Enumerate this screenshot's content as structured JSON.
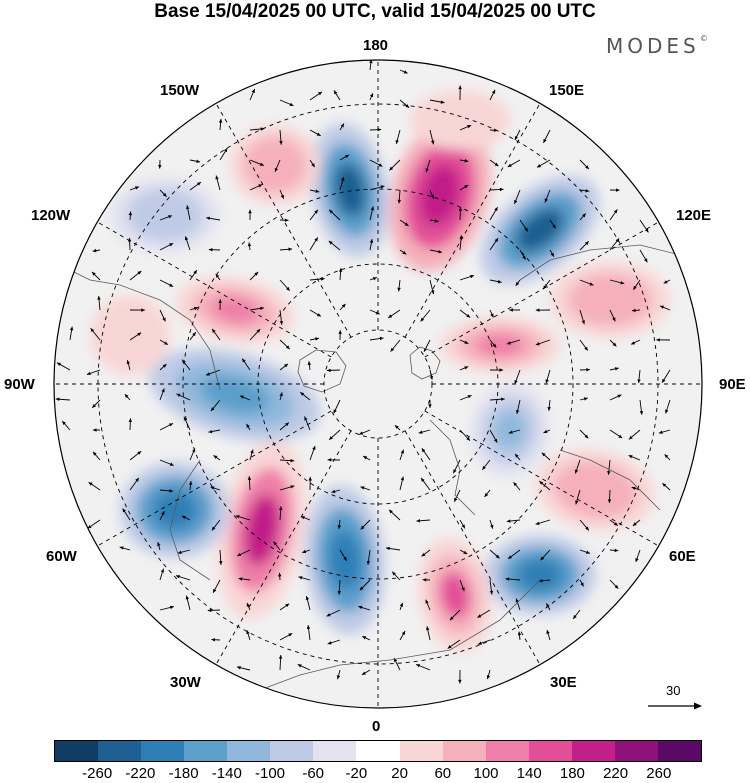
{
  "title": "Base 15/04/2025 00 UTC, valid 15/04/2025 00 UTC",
  "brand": "MODES",
  "brand_mark": "©",
  "map": {
    "projection": "north polar stereographic",
    "longitude_labels": {
      "top": "180",
      "top_left": "150W",
      "top_right": "150E",
      "upper_left": "120W",
      "upper_right": "120E",
      "left": "90W",
      "right": "90E",
      "lower_left": "60W",
      "lower_right": "60E",
      "bottom_left": "30W",
      "bottom_right": "30E",
      "bottom": "0"
    },
    "reference_vector": "30",
    "colors": {
      "land_outline": "#5a5a5a",
      "grid": "#000000",
      "circle": "#000000"
    }
  },
  "colorbar": {
    "tick_labels": [
      "-260",
      "-220",
      "-180",
      "-140",
      "-100",
      "-60",
      "-20",
      "20",
      "60",
      "100",
      "140",
      "180",
      "220",
      "260"
    ],
    "colors": [
      "#0f3d63",
      "#1f5f91",
      "#2f7fb6",
      "#5b9fcb",
      "#8fb8dc",
      "#bfcbe6",
      "#e2e2f0",
      "#ffffff",
      "#f9d6d6",
      "#f5b0bb",
      "#ef7fa8",
      "#e24f98",
      "#c21f88",
      "#8f117a",
      "#5a0a66"
    ]
  }
}
